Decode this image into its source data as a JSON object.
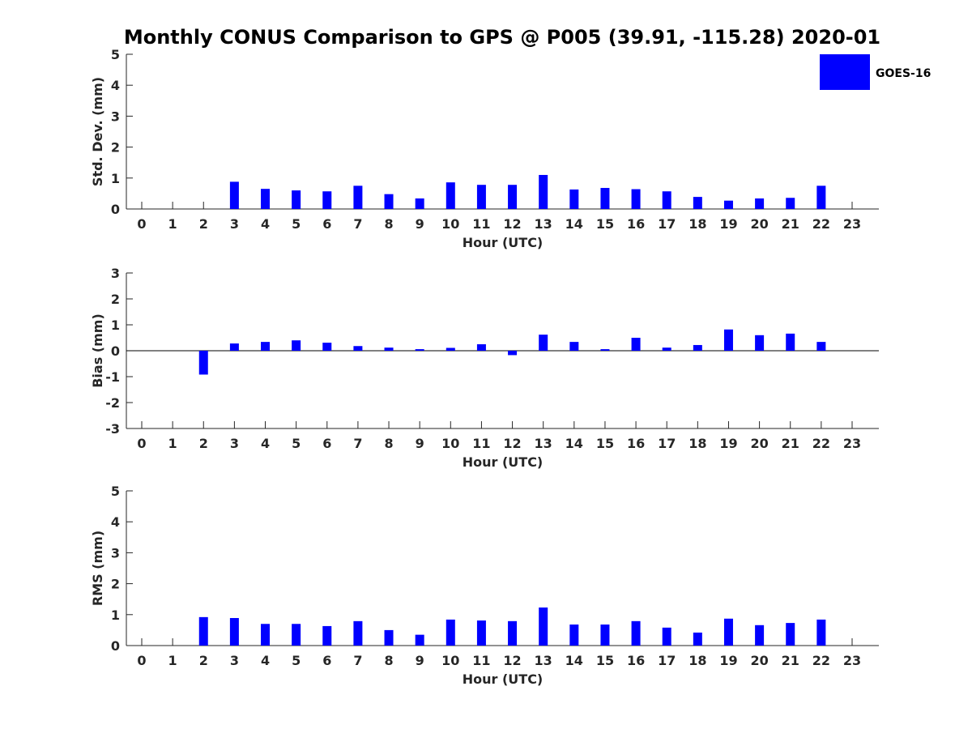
{
  "title": "Monthly CONUS Comparison to GPS @ P005 (39.91, -115.28) 2020-01",
  "legend": {
    "label": "GOES-16",
    "color": "#0000ff"
  },
  "chart_data": [
    {
      "type": "bar",
      "name": "std",
      "ylabel": "Std. Dev. (mm)",
      "xlabel": "Hour (UTC)",
      "ylim": [
        0,
        5
      ],
      "yticks": [
        0,
        1,
        2,
        3,
        4,
        5
      ],
      "categories": [
        0,
        1,
        2,
        3,
        4,
        5,
        6,
        7,
        8,
        9,
        10,
        11,
        12,
        13,
        14,
        15,
        16,
        17,
        18,
        19,
        20,
        21,
        22,
        23
      ],
      "series": [
        {
          "name": "GOES-16",
          "values": [
            null,
            null,
            null,
            0.88,
            0.65,
            0.6,
            0.57,
            0.75,
            0.48,
            0.34,
            0.86,
            0.78,
            0.78,
            1.1,
            0.63,
            0.68,
            0.64,
            0.57,
            0.39,
            0.27,
            0.34,
            0.36,
            0.75,
            null
          ]
        }
      ]
    },
    {
      "type": "bar",
      "name": "bias",
      "ylabel": "Bias (mm)",
      "xlabel": "Hour (UTC)",
      "ylim": [
        -3,
        3
      ],
      "yticks": [
        -3,
        -2,
        -1,
        0,
        1,
        2,
        3
      ],
      "zero_line": true,
      "categories": [
        0,
        1,
        2,
        3,
        4,
        5,
        6,
        7,
        8,
        9,
        10,
        11,
        12,
        13,
        14,
        15,
        16,
        17,
        18,
        19,
        20,
        21,
        22,
        23
      ],
      "series": [
        {
          "name": "GOES-16",
          "values": [
            null,
            null,
            -0.92,
            0.28,
            0.34,
            0.4,
            0.31,
            0.18,
            0.12,
            0.06,
            0.11,
            0.25,
            -0.17,
            0.62,
            0.34,
            0.06,
            0.5,
            0.12,
            0.22,
            0.82,
            0.6,
            0.66,
            0.34,
            null
          ]
        }
      ]
    },
    {
      "type": "bar",
      "name": "rms",
      "ylabel": "RMS (mm)",
      "xlabel": "Hour (UTC)",
      "ylim": [
        0,
        5
      ],
      "yticks": [
        0,
        1,
        2,
        3,
        4,
        5
      ],
      "categories": [
        0,
        1,
        2,
        3,
        4,
        5,
        6,
        7,
        8,
        9,
        10,
        11,
        12,
        13,
        14,
        15,
        16,
        17,
        18,
        19,
        20,
        21,
        22,
        23
      ],
      "series": [
        {
          "name": "GOES-16",
          "values": [
            null,
            null,
            0.92,
            0.89,
            0.7,
            0.7,
            0.63,
            0.79,
            0.5,
            0.35,
            0.84,
            0.81,
            0.79,
            1.23,
            0.68,
            0.68,
            0.79,
            0.58,
            0.42,
            0.87,
            0.66,
            0.73,
            0.84,
            null
          ]
        }
      ]
    }
  ]
}
